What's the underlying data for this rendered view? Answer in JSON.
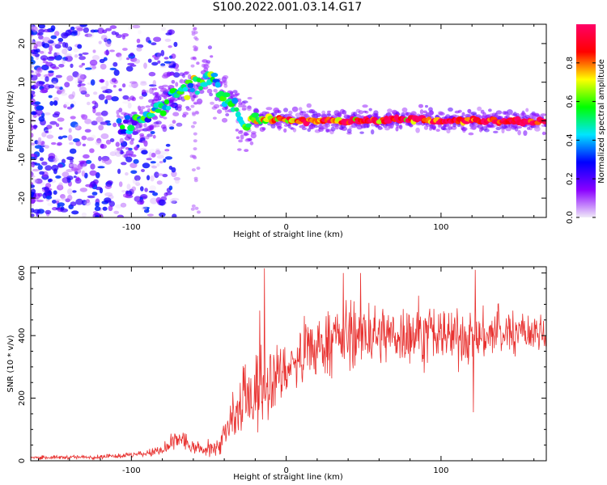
{
  "title": "S100.2022.001.03.14.G17",
  "chart_data": [
    {
      "type": "heatmap",
      "xlabel": "Height of straight line (km)",
      "ylabel": "Frequency (Hz)",
      "xlim": [
        -165,
        168
      ],
      "ylim": [
        -25,
        25
      ],
      "x_ticks": [
        -100,
        0,
        100
      ],
      "y_ticks": [
        -20,
        -10,
        0,
        10,
        20
      ],
      "colorbar": {
        "label": "Normalized spectral amplitude",
        "range": [
          0,
          1
        ],
        "ticks": [
          "0.0",
          "0.2",
          "0.4",
          "0.6",
          "0.8"
        ],
        "colormap": [
          "#f0eaf8",
          "#8a00ff",
          "#0000ff",
          "#00e5ff",
          "#00ff00",
          "#ffff00",
          "#ff0000",
          "#ff0066"
        ]
      },
      "ridge": {
        "x": [
          -108,
          -100,
          -90,
          -80,
          -70,
          -60,
          -52,
          -45,
          -40,
          -35,
          -32,
          -28,
          -22,
          -15,
          0,
          20,
          50,
          80,
          100,
          120,
          140,
          168
        ],
        "y": [
          -2,
          -1,
          1,
          4,
          7,
          9,
          11,
          9,
          6,
          5,
          4,
          -1,
          0,
          0.5,
          0,
          0,
          0,
          0.5,
          0,
          0,
          0,
          0
        ],
        "amplitude": [
          0.3,
          0.35,
          0.45,
          0.5,
          0.55,
          0.6,
          0.55,
          0.5,
          0.5,
          0.45,
          0.4,
          0.5,
          0.6,
          0.75,
          0.8,
          0.85,
          0.9,
          0.9,
          0.9,
          0.95,
          0.95,
          0.95
        ]
      }
    },
    {
      "type": "line",
      "xlabel": "Height of straight line (km)",
      "ylabel": "SNR (10 * v/v)",
      "xlim": [
        -165,
        168
      ],
      "ylim": [
        0,
        620
      ],
      "x_ticks": [
        -100,
        0,
        100
      ],
      "y_ticks": [
        0,
        200,
        400,
        600
      ],
      "color": "#e8312f",
      "envelope": {
        "x": [
          -165,
          -120,
          -100,
          -80,
          -72,
          -68,
          -62,
          -55,
          -45,
          -35,
          -30,
          -25,
          -20,
          -15,
          -10,
          0,
          10,
          20,
          30,
          50,
          80,
          100,
          120,
          140,
          160,
          168
        ],
        "mean": [
          10,
          12,
          18,
          30,
          60,
          75,
          45,
          35,
          40,
          120,
          170,
          200,
          220,
          240,
          260,
          290,
          330,
          360,
          390,
          400,
          405,
          400,
          395,
          405,
          410,
          405
        ],
        "spread": [
          5,
          6,
          8,
          15,
          30,
          35,
          20,
          18,
          25,
          70,
          90,
          100,
          120,
          130,
          100,
          80,
          80,
          90,
          90,
          85,
          85,
          80,
          75,
          65,
          55,
          45
        ]
      },
      "peaks": [
        {
          "x": -14,
          "y": 615
        },
        {
          "x": -17,
          "y": 480
        },
        {
          "x": 37,
          "y": 600
        },
        {
          "x": 48,
          "y": 600
        },
        {
          "x": 122,
          "y": 610
        },
        {
          "x": 121,
          "y": 155
        }
      ]
    }
  ]
}
